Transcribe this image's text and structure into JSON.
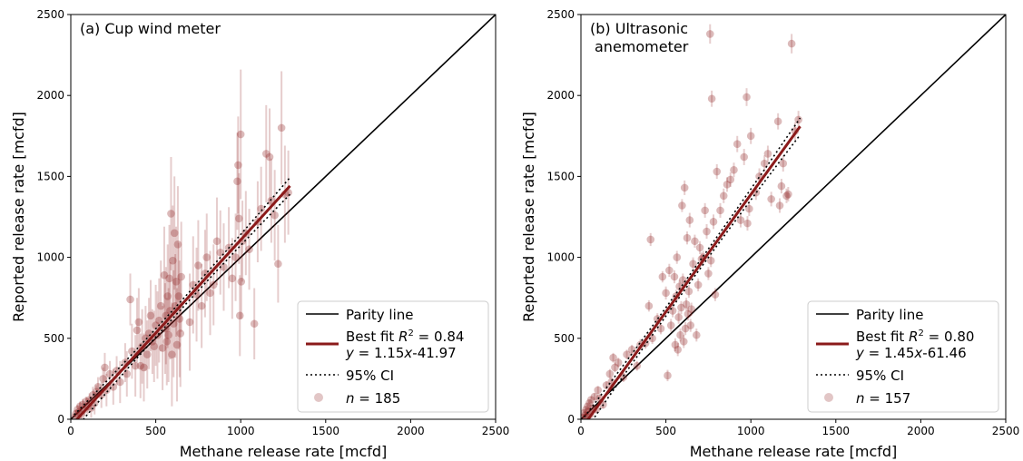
{
  "chart_data": [
    {
      "type": "scatter",
      "title": "(a) Cup wind meter",
      "xlabel": "Methane release rate [mcfd]",
      "ylabel": "Reported release rate [mcfd]",
      "xlim": [
        0,
        2500
      ],
      "ylim": [
        0,
        2500
      ],
      "xticks": [
        "0",
        "500",
        "1000",
        "1500",
        "2000",
        "2500"
      ],
      "yticks": [
        "0",
        "500",
        "1000",
        "1500",
        "2000",
        "2500"
      ],
      "legend_position": "bottom-right",
      "legend": {
        "parity": "Parity line",
        "fit_line1": "Best fit R² = 0.84",
        "fit_line2": "y = 1.15x-41.97",
        "ci": "95% CI",
        "n": "n = 185"
      },
      "fit": {
        "slope": 1.15,
        "intercept": -41.97,
        "r2": 0.84,
        "x_range": [
          20,
          1290
        ]
      },
      "colors": {
        "points": "#8b1a1a",
        "fit": "#8b1a1a",
        "parity": "#000000",
        "ci": "#000000"
      },
      "points": [
        [
          25,
          15,
          40
        ],
        [
          30,
          35,
          25
        ],
        [
          40,
          60,
          30
        ],
        [
          50,
          45,
          35
        ],
        [
          55,
          80,
          30
        ],
        [
          60,
          30,
          40
        ],
        [
          70,
          90,
          35
        ],
        [
          80,
          60,
          40
        ],
        [
          90,
          110,
          30
        ],
        [
          100,
          80,
          50
        ],
        [
          110,
          120,
          40
        ],
        [
          120,
          70,
          60
        ],
        [
          130,
          150,
          50
        ],
        [
          140,
          100,
          70
        ],
        [
          150,
          170,
          40
        ],
        [
          160,
          200,
          60
        ],
        [
          180,
          150,
          80
        ],
        [
          190,
          250,
          70
        ],
        [
          200,
          320,
          90
        ],
        [
          210,
          180,
          100
        ],
        [
          230,
          280,
          80
        ],
        [
          250,
          200,
          110
        ],
        [
          270,
          300,
          90
        ],
        [
          290,
          230,
          130
        ],
        [
          320,
          350,
          120
        ],
        [
          330,
          280,
          140
        ],
        [
          350,
          740,
          160
        ],
        [
          360,
          420,
          170
        ],
        [
          380,
          330,
          190
        ],
        [
          390,
          550,
          200
        ],
        [
          400,
          600,
          210
        ],
        [
          410,
          330,
          200
        ],
        [
          420,
          450,
          230
        ],
        [
          430,
          320,
          210
        ],
        [
          440,
          500,
          200
        ],
        [
          450,
          400,
          210
        ],
        [
          460,
          530,
          220
        ],
        [
          470,
          640,
          220
        ],
        [
          480,
          480,
          200
        ],
        [
          490,
          450,
          220
        ],
        [
          500,
          580,
          250
        ],
        [
          510,
          520,
          270
        ],
        [
          520,
          610,
          260
        ],
        [
          530,
          700,
          280
        ],
        [
          540,
          440,
          260
        ],
        [
          550,
          890,
          300
        ],
        [
          555,
          560,
          280
        ],
        [
          560,
          640,
          300
        ],
        [
          565,
          480,
          270
        ],
        [
          570,
          760,
          320
        ],
        [
          575,
          520,
          290
        ],
        [
          580,
          870,
          330
        ],
        [
          585,
          670,
          300
        ],
        [
          590,
          1270,
          350
        ],
        [
          595,
          400,
          320
        ],
        [
          600,
          980,
          340
        ],
        [
          605,
          590,
          330
        ],
        [
          610,
          1150,
          350
        ],
        [
          615,
          700,
          320
        ],
        [
          620,
          850,
          340
        ],
        [
          625,
          460,
          350
        ],
        [
          630,
          1080,
          360
        ],
        [
          635,
          760,
          330
        ],
        [
          640,
          620,
          360
        ],
        [
          645,
          530,
          330
        ],
        [
          650,
          880,
          340
        ],
        [
          700,
          600,
          300
        ],
        [
          720,
          830,
          300
        ],
        [
          740,
          770,
          290
        ],
        [
          750,
          950,
          280
        ],
        [
          770,
          700,
          260
        ],
        [
          790,
          900,
          270
        ],
        [
          800,
          1000,
          270
        ],
        [
          820,
          780,
          260
        ],
        [
          840,
          830,
          250
        ],
        [
          860,
          1100,
          270
        ],
        [
          880,
          1030,
          260
        ],
        [
          900,
          940,
          270
        ],
        [
          930,
          1060,
          250
        ],
        [
          950,
          870,
          250
        ],
        [
          970,
          1000,
          270
        ],
        [
          980,
          1470,
          300
        ],
        [
          985,
          1570,
          300
        ],
        [
          990,
          1240,
          280
        ],
        [
          995,
          640,
          250
        ],
        [
          1000,
          1760,
          400
        ],
        [
          1003,
          850,
          230
        ],
        [
          1010,
          1100,
          250
        ],
        [
          1030,
          1150,
          260
        ],
        [
          1050,
          1050,
          250
        ],
        [
          1080,
          590,
          220
        ],
        [
          1100,
          1220,
          250
        ],
        [
          1120,
          1300,
          260
        ],
        [
          1150,
          1640,
          300
        ],
        [
          1170,
          1620,
          300
        ],
        [
          1180,
          1350,
          260
        ],
        [
          1200,
          1260,
          280
        ],
        [
          1220,
          960,
          240
        ],
        [
          1240,
          1800,
          350
        ],
        [
          1260,
          1390,
          300
        ],
        [
          1280,
          1400,
          260
        ]
      ]
    },
    {
      "type": "scatter",
      "title_line1": "(b) Ultrasonic",
      "title_line2": "anemometer",
      "xlabel": "Methane release rate [mcfd]",
      "ylabel": "Reported release rate [mcfd]",
      "xlim": [
        0,
        2500
      ],
      "ylim": [
        0,
        2500
      ],
      "xticks": [
        "0",
        "500",
        "1000",
        "1500",
        "2000",
        "2500"
      ],
      "yticks": [
        "0",
        "500",
        "1000",
        "1500",
        "2000",
        "2500"
      ],
      "legend_position": "bottom-right",
      "legend": {
        "parity": "Parity line",
        "fit_line1": "Best fit R² = 0.80",
        "fit_line2": "y = 1.45x-61.46",
        "ci": "95% CI",
        "n": "n = 157"
      },
      "fit": {
        "slope": 1.45,
        "intercept": -61.46,
        "r2": 0.8,
        "x_range": [
          20,
          1290
        ]
      },
      "colors": {
        "points": "#8b1a1a",
        "fit": "#8b1a1a",
        "parity": "#000000",
        "ci": "#000000"
      },
      "points": [
        [
          15,
          10,
          20
        ],
        [
          20,
          40,
          20
        ],
        [
          25,
          25,
          20
        ],
        [
          30,
          60,
          20
        ],
        [
          35,
          15,
          20
        ],
        [
          40,
          80,
          20
        ],
        [
          45,
          50,
          20
        ],
        [
          50,
          100,
          20
        ],
        [
          55,
          30,
          20
        ],
        [
          60,
          120,
          20
        ],
        [
          70,
          70,
          20
        ],
        [
          80,
          140,
          20
        ],
        [
          90,
          60,
          20
        ],
        [
          100,
          180,
          25
        ],
        [
          110,
          130,
          25
        ],
        [
          130,
          90,
          25
        ],
        [
          150,
          210,
          25
        ],
        [
          170,
          280,
          30
        ],
        [
          180,
          230,
          30
        ],
        [
          190,
          380,
          30
        ],
        [
          200,
          320,
          30
        ],
        [
          220,
          350,
          30
        ],
        [
          250,
          260,
          30
        ],
        [
          270,
          400,
          30
        ],
        [
          300,
          430,
          30
        ],
        [
          330,
          330,
          30
        ],
        [
          350,
          460,
          35
        ],
        [
          380,
          470,
          35
        ],
        [
          400,
          700,
          35
        ],
        [
          410,
          1110,
          40
        ],
        [
          420,
          500,
          35
        ],
        [
          450,
          620,
          35
        ],
        [
          470,
          560,
          35
        ],
        [
          480,
          880,
          35
        ],
        [
          500,
          780,
          40
        ],
        [
          510,
          270,
          35
        ],
        [
          520,
          920,
          40
        ],
        [
          530,
          580,
          40
        ],
        [
          540,
          670,
          40
        ],
        [
          550,
          880,
          40
        ],
        [
          555,
          460,
          40
        ],
        [
          560,
          760,
          40
        ],
        [
          565,
          1000,
          40
        ],
        [
          570,
          430,
          40
        ],
        [
          575,
          630,
          40
        ],
        [
          580,
          820,
          40
        ],
        [
          585,
          520,
          40
        ],
        [
          590,
          690,
          40
        ],
        [
          595,
          1320,
          40
        ],
        [
          600,
          860,
          40
        ],
        [
          605,
          480,
          40
        ],
        [
          610,
          1430,
          45
        ],
        [
          615,
          560,
          40
        ],
        [
          620,
          710,
          40
        ],
        [
          625,
          1120,
          40
        ],
        [
          630,
          650,
          40
        ],
        [
          635,
          790,
          40
        ],
        [
          640,
          1230,
          45
        ],
        [
          645,
          580,
          40
        ],
        [
          650,
          680,
          40
        ],
        [
          660,
          960,
          40
        ],
        [
          670,
          1100,
          40
        ],
        [
          680,
          520,
          40
        ],
        [
          690,
          830,
          40
        ],
        [
          700,
          1060,
          40
        ],
        [
          710,
          990,
          40
        ],
        [
          720,
          1000,
          40
        ],
        [
          730,
          1290,
          45
        ],
        [
          740,
          1160,
          45
        ],
        [
          750,
          900,
          40
        ],
        [
          760,
          2380,
          60
        ],
        [
          765,
          980,
          40
        ],
        [
          770,
          1980,
          50
        ],
        [
          780,
          1220,
          45
        ],
        [
          790,
          770,
          40
        ],
        [
          800,
          1530,
          45
        ],
        [
          820,
          1290,
          45
        ],
        [
          840,
          1380,
          45
        ],
        [
          860,
          1450,
          45
        ],
        [
          880,
          1480,
          45
        ],
        [
          900,
          1540,
          45
        ],
        [
          920,
          1700,
          50
        ],
        [
          940,
          1230,
          45
        ],
        [
          960,
          1620,
          50
        ],
        [
          975,
          1990,
          55
        ],
        [
          980,
          1210,
          45
        ],
        [
          990,
          1300,
          45
        ],
        [
          1000,
          1750,
          50
        ],
        [
          1030,
          1400,
          45
        ],
        [
          1050,
          1500,
          50
        ],
        [
          1080,
          1580,
          50
        ],
        [
          1100,
          1640,
          50
        ],
        [
          1120,
          1360,
          45
        ],
        [
          1160,
          1840,
          50
        ],
        [
          1170,
          1320,
          45
        ],
        [
          1180,
          1440,
          45
        ],
        [
          1190,
          1580,
          50
        ],
        [
          1210,
          1380,
          45
        ],
        [
          1220,
          1390,
          45
        ],
        [
          1240,
          2320,
          60
        ],
        [
          1260,
          1780,
          55
        ],
        [
          1280,
          1850,
          55
        ]
      ]
    }
  ]
}
